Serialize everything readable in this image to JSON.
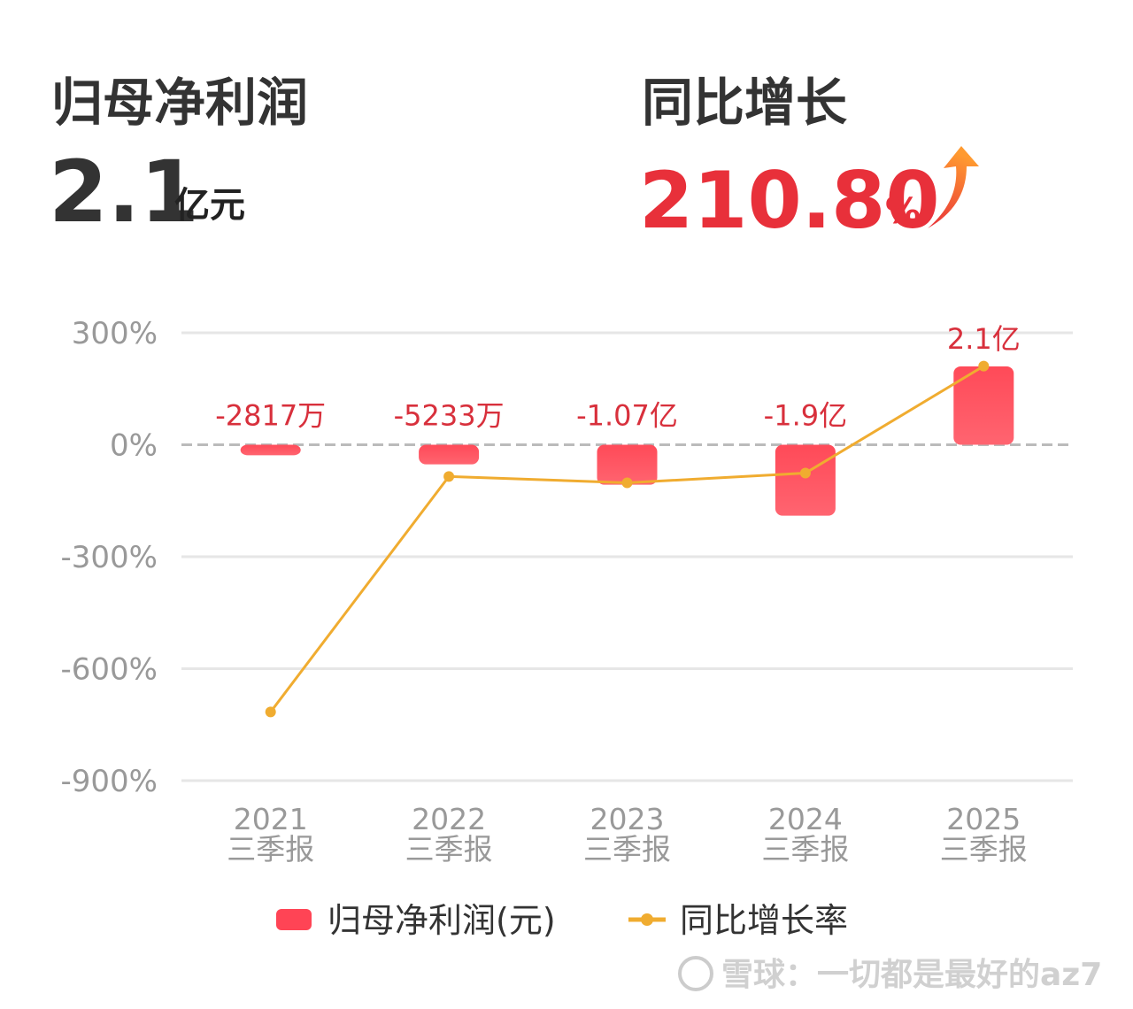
{
  "header": {
    "left_title": "归母净利润",
    "left_value": "2.1",
    "left_unit": "亿元",
    "right_title": "同比增长",
    "right_value": "210.80",
    "right_unit": "%"
  },
  "chart_data": {
    "type": "bar-line",
    "categories": [
      [
        "2021",
        "三季报"
      ],
      [
        "2022",
        "三季报"
      ],
      [
        "2023",
        "三季报"
      ],
      [
        "2024",
        "三季报"
      ],
      [
        "2025",
        "三季报"
      ]
    ],
    "series": [
      {
        "name": "归母净利润(元)",
        "type": "bar",
        "axis": "y2",
        "color": "#ff4455",
        "values": [
          -28170000,
          -52330000,
          -107000000,
          -190000000,
          210000000
        ],
        "value_labels": [
          "-2817万",
          "-5233万",
          "-1.07亿",
          "-1.9亿",
          "2.1亿"
        ]
      },
      {
        "name": "同比增长率",
        "type": "line",
        "color": "#f0ac30",
        "values": [
          -716,
          -85,
          -102,
          -76,
          210.8
        ]
      }
    ],
    "ylim": [
      -900,
      300
    ],
    "yticks": [
      {
        "value": 300,
        "label": "300%"
      },
      {
        "value": 0,
        "label": "0%"
      },
      {
        "value": -300,
        "label": "-300%"
      },
      {
        "value": -600,
        "label": "-600%"
      },
      {
        "value": -900,
        "label": "-900%"
      }
    ],
    "y2lim": [
      -900000000,
      300000000
    ],
    "grid": true
  },
  "watermark": "雪球：一切都是最好的az7"
}
